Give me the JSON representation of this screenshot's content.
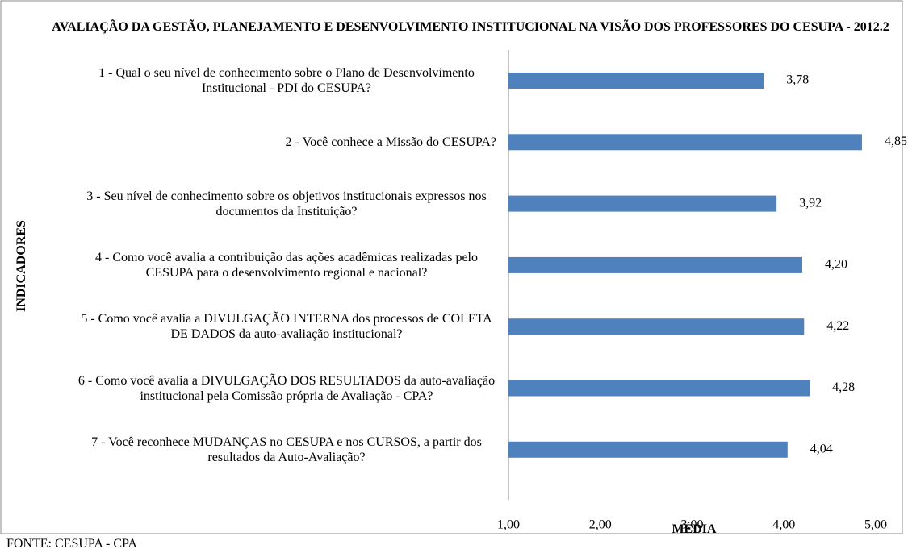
{
  "chart_data": {
    "type": "bar",
    "orientation": "horizontal",
    "title": "AVALIAÇÃO  DA GESTÃO, PLANEJAMENTO E DESENVOLVIMENTO INSTITUCIONAL NA VISÃO DOS PROFESSORES DO CESUPA - 2012.2",
    "y_label": "INDICADORES",
    "x_label": "MÉDIA",
    "source": "FONTE: CESUPA - CPA",
    "categories": [
      "1 - Qual o seu nível de conhecimento sobre o Plano de Desenvolvimento Institucional - PDI  do CESUPA?",
      "2 - Você conhece a Missão do CESUPA?",
      "3 - Seu nível de conhecimento sobre os objetivos institucionais expressos nos documentos da Instituição?",
      "4 - Como você avalia a contribuição das ações acadêmicas realizadas pelo CESUPA para o desenvolvimento regional e nacional?",
      "5 - Como você avalia a DIVULGAÇÃO INTERNA dos processos de COLETA DE DADOS da auto-avaliação institucional?",
      "6 - Como você avalia a DIVULGAÇÃO DOS RESULTADOS da auto-avaliação institucional pela Comissão própria de Avaliação - CPA?",
      "7 - Você reconhece MUDANÇAS no CESUPA e nos CURSOS, a partir dos resultados da Auto-Avaliação?"
    ],
    "values": [
      3.78,
      4.85,
      3.92,
      4.2,
      4.22,
      4.28,
      4.04
    ],
    "value_labels": [
      "3,78",
      "4,85",
      "3,92",
      "4,20",
      "4,22",
      "4,28",
      "4,04"
    ],
    "color": "#4f81bd",
    "xlim": [
      1,
      5
    ],
    "xticks": [
      {
        "value": 1,
        "label": "1,00"
      },
      {
        "value": 2,
        "label": "2,00"
      },
      {
        "value": 3,
        "label": "3,00"
      },
      {
        "value": 4,
        "label": "4,00"
      },
      {
        "value": 5,
        "label": "5,00"
      }
    ],
    "grid": false
  }
}
